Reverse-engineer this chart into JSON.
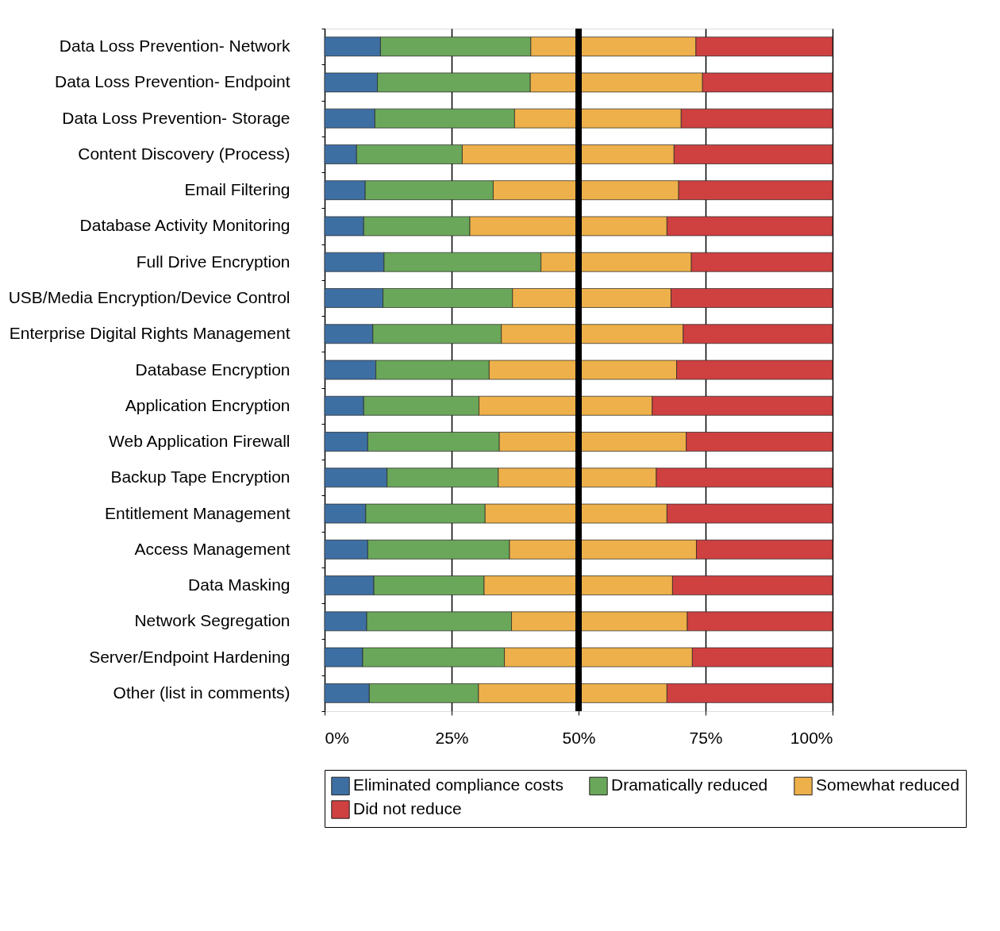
{
  "chart_data": {
    "type": "bar",
    "orientation": "horizontal",
    "stacked": true,
    "categories": [
      "Data Loss Prevention- Network",
      "Data Loss Prevention- Endpoint",
      "Data Loss Prevention- Storage",
      "Content Discovery (Process)",
      "Email Filtering",
      "Database Activity Monitoring",
      "Full Drive Encryption",
      "USB/Media Encryption/Device Control",
      "Enterprise Digital Rights Management",
      "Database Encryption",
      "Application Encryption",
      "Web Application Firewall",
      "Backup Tape Encryption",
      "Entitlement Management",
      "Access Management",
      "Data Masking",
      "Network Segregation",
      "Server/Endpoint Hardening",
      "Other (list in comments)"
    ],
    "series": [
      {
        "name": "Eliminated compliance costs",
        "color": "#3e6fa3",
        "values": [
          11.0,
          10.4,
          9.9,
          6.3,
          8.0,
          7.7,
          11.7,
          11.5,
          9.5,
          10.1,
          7.7,
          8.5,
          12.3,
          8.1,
          8.5,
          9.7,
          8.3,
          7.5,
          8.8
        ]
      },
      {
        "name": "Dramatically reduced",
        "color": "#6aa75a",
        "values": [
          29.6,
          30.1,
          27.5,
          20.8,
          25.2,
          20.9,
          30.9,
          25.5,
          25.3,
          22.3,
          22.7,
          25.9,
          21.9,
          23.5,
          27.9,
          21.7,
          28.5,
          27.9,
          21.5
        ]
      },
      {
        "name": "Somewhat reduced",
        "color": "#edb04a",
        "values": [
          32.5,
          33.9,
          32.8,
          41.7,
          36.5,
          38.8,
          29.6,
          31.2,
          35.8,
          36.9,
          34.1,
          36.8,
          31.1,
          35.8,
          36.8,
          37.1,
          34.6,
          37.0,
          37.1
        ]
      },
      {
        "name": "Did not reduce",
        "color": "#cf4040",
        "values": [
          26.9,
          25.6,
          29.8,
          31.2,
          30.3,
          32.6,
          27.8,
          31.8,
          29.4,
          30.7,
          35.5,
          28.8,
          34.7,
          32.6,
          26.8,
          31.5,
          28.6,
          27.6,
          32.6
        ]
      }
    ],
    "xlim": [
      0,
      100
    ],
    "xticks": [
      {
        "value": 0,
        "label": "0%"
      },
      {
        "value": 25,
        "label": "25%"
      },
      {
        "value": 50,
        "label": "50%"
      },
      {
        "value": 75,
        "label": "75%"
      },
      {
        "value": 100,
        "label": "100%"
      }
    ],
    "ref_lines": [
      {
        "axis": "x",
        "value": 50,
        "color": "#000000"
      }
    ],
    "grid": "x",
    "legend": "bottom"
  }
}
